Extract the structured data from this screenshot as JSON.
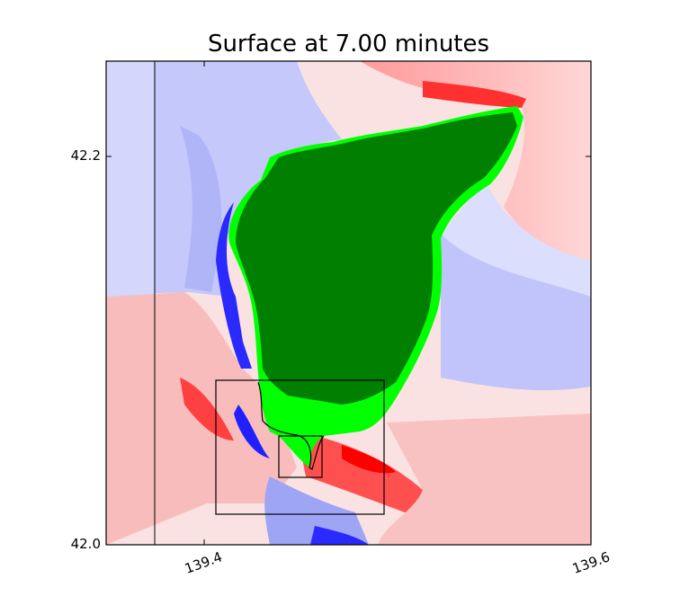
{
  "title": "Surface at 7.00 minutes",
  "axes": {
    "x_ticks": [
      "139.4",
      "139.6"
    ],
    "y_ticks": [
      "42.2",
      "42.0"
    ]
  },
  "colors": {
    "positive": "#ff0000",
    "negative": "#0000ff",
    "land_dry": "#007f00",
    "land_wet": "#00ff00",
    "frame": "#000000"
  },
  "legend": null
}
